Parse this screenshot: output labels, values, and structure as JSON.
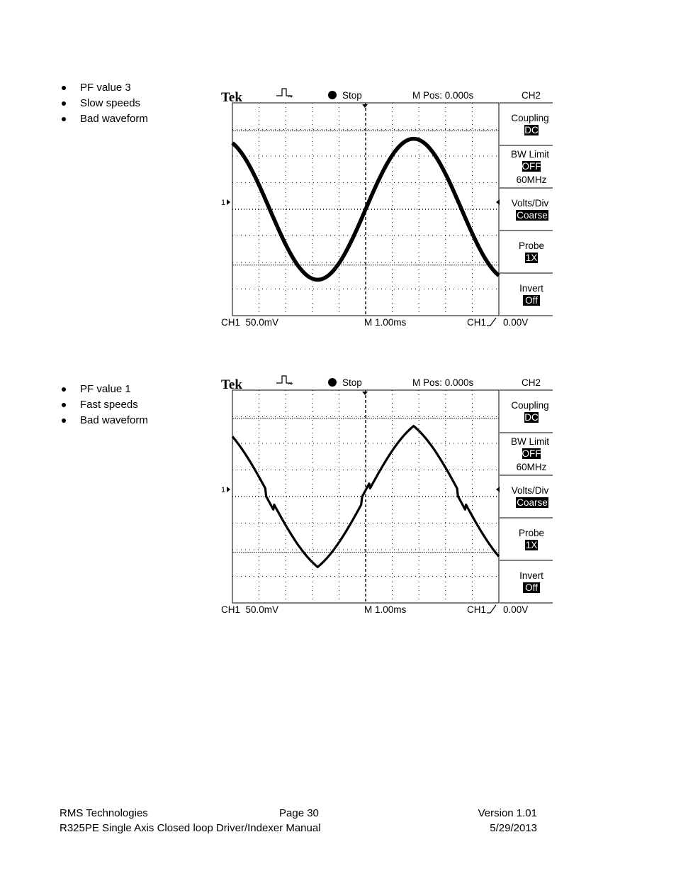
{
  "sections": [
    {
      "bullets": [
        "PF value 3",
        "Slow speeds",
        "Bad waveform"
      ],
      "scope": {
        "brand": "Tek",
        "status": "Stop",
        "mpos": "M Pos: 0.000s",
        "channel": "CH2",
        "menu": [
          {
            "label": "Coupling",
            "value": "DC"
          },
          {
            "label": "BW Limit",
            "value": "OFF",
            "extra": "60MHz"
          },
          {
            "label": "Volts/Div",
            "value": "Coarse"
          },
          {
            "label": "Probe",
            "value": "1X"
          },
          {
            "label": "Invert",
            "value": "Off"
          }
        ],
        "ch1_scale": "CH1  50.0mV",
        "timebase": "M 1.00ms",
        "trigger_src": "CH1",
        "trigger_level": "0.00V",
        "marker": "1"
      }
    },
    {
      "bullets": [
        "PF value 1",
        "Fast speeds",
        "Bad waveform"
      ],
      "scope": {
        "brand": "Tek",
        "status": "Stop",
        "mpos": "M Pos: 0.000s",
        "channel": "CH2",
        "menu": [
          {
            "label": "Coupling",
            "value": "DC"
          },
          {
            "label": "BW Limit",
            "value": "OFF",
            "extra": "60MHz"
          },
          {
            "label": "Volts/Div",
            "value": "Coarse"
          },
          {
            "label": "Probe",
            "value": "1X"
          },
          {
            "label": "Invert",
            "value": "Off"
          }
        ],
        "ch1_scale": "CH1  50.0mV",
        "timebase": "M 1.00ms",
        "trigger_src": "CH1",
        "trigger_level": "0.00V",
        "marker": "1"
      }
    }
  ],
  "footer": {
    "company": "RMS Technologies",
    "page": "Page 30",
    "version": "Version 1.01",
    "manual": "R325PE Single Axis Closed loop Driver/Indexer Manual",
    "date": "5/29/2013"
  }
}
